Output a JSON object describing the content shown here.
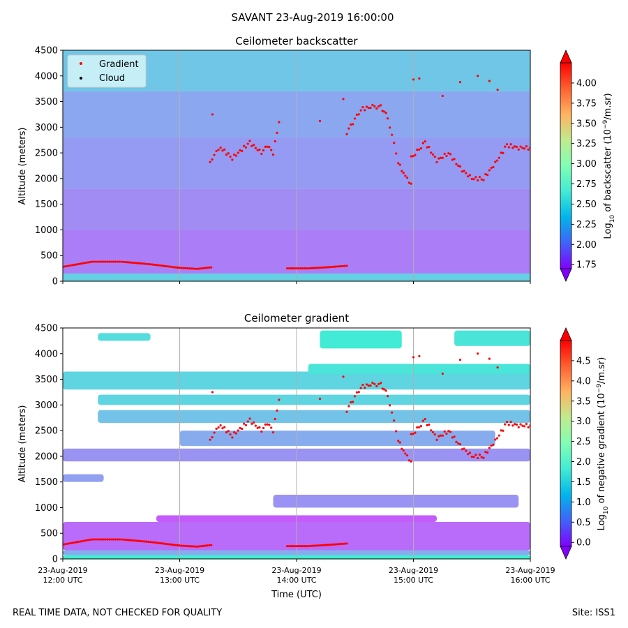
{
  "figure": {
    "suptitle": "SAVANT 23-Aug-2019 16:00:00",
    "footer_left": "REAL TIME DATA, NOT CHECKED FOR QUALITY",
    "footer_right": "Site: ISS1"
  },
  "chart_data": [
    {
      "type": "heatmap",
      "title": "Ceilometer backscatter",
      "xlabel": "",
      "ylabel": "Altitude (meters)",
      "ylim": [
        0,
        4500
      ],
      "yticks": [
        "0",
        "500",
        "1000",
        "1500",
        "2000",
        "2500",
        "3000",
        "3500",
        "4000",
        "4500"
      ],
      "xlim_hours": [
        12,
        16
      ],
      "grid_x": true,
      "legend": {
        "placement": "top-left",
        "entries": [
          {
            "label": "Gradient",
            "color": "#ff0000"
          },
          {
            "label": "Cloud",
            "color": "#000000"
          }
        ]
      },
      "colorbar": {
        "label_prefix": "Log",
        "label_sub": "10",
        "label_mid": " of backscatter (10",
        "label_sup": "−9",
        "label_suffix": "/m.sr)",
        "range": [
          1.7,
          4.25
        ],
        "ticks": [
          "1.75",
          "2.00",
          "2.25",
          "2.50",
          "2.75",
          "3.00",
          "3.25",
          "3.50",
          "3.75",
          "4.00"
        ]
      },
      "background_levels": [
        {
          "alt": [
            0,
            150
          ],
          "value": 2.47
        },
        {
          "alt": [
            150,
            1000
          ],
          "value": 2.12
        },
        {
          "alt": [
            1000,
            1800
          ],
          "value": 2.17
        },
        {
          "alt": [
            1800,
            2800
          ],
          "value": 2.23
        },
        {
          "alt": [
            2800,
            3700
          ],
          "value": 2.28
        },
        {
          "alt": [
            3700,
            4500
          ],
          "value": 2.42
        }
      ]
    },
    {
      "type": "heatmap",
      "title": "Ceilometer gradient",
      "xlabel": "Time (UTC)",
      "ylabel": "Altitude (meters)",
      "ylim": [
        0,
        4500
      ],
      "yticks": [
        "0",
        "500",
        "1000",
        "1500",
        "2000",
        "2500",
        "3000",
        "3500",
        "4000",
        "4500"
      ],
      "xlim_hours": [
        12,
        16
      ],
      "xticks": [
        {
          "date": "23-Aug-2019",
          "time": "12:00 UTC"
        },
        {
          "date": "23-Aug-2019",
          "time": "13:00 UTC"
        },
        {
          "date": "23-Aug-2019",
          "time": "14:00 UTC"
        },
        {
          "date": "23-Aug-2019",
          "time": "15:00 UTC"
        },
        {
          "date": "23-Aug-2019",
          "time": "16:00 UTC"
        }
      ],
      "grid_x": true,
      "colorbar": {
        "label_prefix": "Log",
        "label_sub": "10",
        "label_mid": " of negative gradient (10",
        "label_sup": "−9",
        "label_suffix": "/m.sr)",
        "range": [
          -0.1,
          5.0
        ],
        "ticks": [
          "0.0",
          "0.5",
          "1.0",
          "1.5",
          "2.0",
          "2.5",
          "3.0",
          "3.5",
          "4.0",
          "4.5"
        ]
      },
      "layers": [
        {
          "hours": [
            12.0,
            16.0
          ],
          "alt": [
            0,
            70
          ],
          "value": 1.9
        },
        {
          "hours": [
            12.0,
            16.0
          ],
          "alt": [
            70,
            170
          ],
          "value": 1.1
        },
        {
          "hours": [
            12.0,
            16.0
          ],
          "alt": [
            170,
            720
          ],
          "value": 0.6
        },
        {
          "hours": [
            12.8,
            15.2
          ],
          "alt": [
            720,
            850
          ],
          "value": 0.5
        },
        {
          "hours": [
            13.8,
            15.9
          ],
          "alt": [
            1000,
            1250
          ],
          "value": 0.9
        },
        {
          "hours": [
            12.0,
            12.35
          ],
          "alt": [
            1500,
            1650
          ],
          "value": 1.0
        },
        {
          "hours": [
            12.0,
            16.0
          ],
          "alt": [
            1900,
            2150
          ],
          "value": 0.9
        },
        {
          "hours": [
            13.0,
            15.7
          ],
          "alt": [
            2200,
            2500
          ],
          "value": 1.1
        },
        {
          "hours": [
            12.3,
            16.0
          ],
          "alt": [
            2650,
            2900
          ],
          "value": 1.3
        },
        {
          "hours": [
            12.3,
            16.0
          ],
          "alt": [
            3000,
            3200
          ],
          "value": 1.5
        },
        {
          "hours": [
            12.0,
            16.0
          ],
          "alt": [
            3300,
            3650
          ],
          "value": 1.5
        },
        {
          "hours": [
            14.1,
            16.0
          ],
          "alt": [
            3600,
            3800
          ],
          "value": 1.7
        },
        {
          "hours": [
            12.3,
            12.75
          ],
          "alt": [
            4250,
            4400
          ],
          "value": 1.6
        },
        {
          "hours": [
            14.2,
            14.9
          ],
          "alt": [
            4100,
            4450
          ],
          "value": 1.8
        },
        {
          "hours": [
            15.35,
            16.0
          ],
          "alt": [
            4150,
            4450
          ],
          "value": 1.7
        }
      ]
    }
  ],
  "gradient_points": {
    "color": "#ff0000",
    "segments": [
      {
        "hours": [
          12.0,
          12.25,
          12.5,
          12.75,
          13.0,
          13.15,
          13.27
        ],
        "alt": [
          280,
          380,
          380,
          330,
          260,
          240,
          270
        ]
      },
      {
        "hours": [
          13.26,
          13.35,
          13.45,
          13.6,
          13.7,
          13.75,
          13.8,
          13.85
        ],
        "alt": [
          2350,
          2600,
          2400,
          2700,
          2500,
          2650,
          2500,
          3100
        ]
      },
      {
        "hours": [
          13.92,
          14.1,
          14.25,
          14.43
        ],
        "alt": [
          250,
          250,
          270,
          300
        ]
      },
      {
        "hours": [
          14.43,
          14.55,
          14.65,
          14.72,
          14.78,
          14.87,
          14.93,
          14.98
        ],
        "alt": [
          2900,
          3350,
          3400,
          3400,
          3200,
          2300,
          2050,
          1900
        ]
      },
      {
        "hours": [
          14.98,
          15.1,
          15.2,
          15.3,
          15.4,
          15.5,
          15.6,
          15.7,
          15.8,
          15.9,
          16.0
        ],
        "alt": [
          2400,
          2700,
          2350,
          2500,
          2200,
          2000,
          2000,
          2300,
          2650,
          2600,
          2600
        ]
      }
    ],
    "isolated": [
      {
        "hours": 13.28,
        "alt": 3250
      },
      {
        "hours": 14.4,
        "alt": 3550
      },
      {
        "hours": 14.2,
        "alt": 3120
      },
      {
        "hours": 15.0,
        "alt": 3930
      },
      {
        "hours": 15.05,
        "alt": 3950
      },
      {
        "hours": 15.25,
        "alt": 3610
      },
      {
        "hours": 15.4,
        "alt": 3880
      },
      {
        "hours": 15.55,
        "alt": 4000
      },
      {
        "hours": 15.65,
        "alt": 3900
      },
      {
        "hours": 15.72,
        "alt": 3730
      }
    ]
  }
}
